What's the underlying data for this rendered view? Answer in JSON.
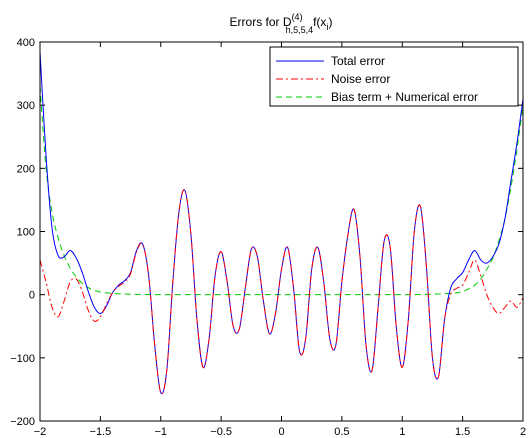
{
  "chart_data": {
    "type": "line",
    "title": {
      "prefix": "Errors for D",
      "superscript": "(4)",
      "subscript": "h,5,5,4",
      "suffix": "f(x",
      "suffix_sub": "i",
      "suffix_end": ")"
    },
    "xlabel": "",
    "ylabel": "",
    "xlim": [
      -2,
      2
    ],
    "ylim": [
      -200,
      400
    ],
    "x_ticks": [
      -2,
      -1.5,
      -1,
      -0.5,
      0,
      0.5,
      1,
      1.5,
      2
    ],
    "x_tick_labels": [
      "−2",
      "−1.5",
      "−1",
      "−0.5",
      "0",
      "0.5",
      "1",
      "1.5",
      "2"
    ],
    "y_ticks": [
      -200,
      -100,
      0,
      100,
      200,
      300,
      400
    ],
    "y_tick_labels": [
      "−200",
      "−100",
      "0",
      "100",
      "200",
      "300",
      "400"
    ],
    "grid": false,
    "legend_position": "top-right",
    "series": [
      {
        "name": "Total error",
        "color": "#0000ff",
        "dash": "solid",
        "x": [
          -2,
          -1.95,
          -1.9,
          -1.85,
          -1.8,
          -1.75,
          -1.7,
          -1.65,
          -1.6,
          -1.55,
          -1.5,
          -1.45,
          -1.4,
          -1.35,
          -1.3,
          -1.25,
          -1.2,
          -1.15,
          -1.1,
          -1.05,
          -1.0,
          -0.95,
          -0.9,
          -0.85,
          -0.8,
          -0.75,
          -0.7,
          -0.65,
          -0.6,
          -0.55,
          -0.5,
          -0.45,
          -0.4,
          -0.35,
          -0.3,
          -0.25,
          -0.2,
          -0.15,
          -0.1,
          -0.05,
          0,
          0.05,
          0.1,
          0.15,
          0.2,
          0.25,
          0.3,
          0.35,
          0.4,
          0.45,
          0.5,
          0.55,
          0.6,
          0.65,
          0.7,
          0.75,
          0.8,
          0.85,
          0.9,
          0.95,
          1.0,
          1.05,
          1.1,
          1.15,
          1.2,
          1.25,
          1.3,
          1.35,
          1.4,
          1.45,
          1.5,
          1.55,
          1.6,
          1.65,
          1.7,
          1.75,
          1.8,
          1.85,
          1.9,
          1.95,
          2
        ],
        "y": [
          385,
          220,
          105,
          62,
          60,
          70,
          58,
          35,
          5,
          -20,
          -30,
          -18,
          3,
          15,
          22,
          35,
          70,
          80,
          30,
          -80,
          -155,
          -120,
          20,
          130,
          165,
          95,
          -40,
          -115,
          -70,
          30,
          68,
          20,
          -50,
          -55,
          10,
          72,
          60,
          -10,
          -62,
          -30,
          40,
          75,
          10,
          -90,
          -70,
          40,
          75,
          20,
          -70,
          -80,
          20,
          95,
          135,
          60,
          -80,
          -120,
          -20,
          85,
          75,
          -50,
          -115,
          -40,
          100,
          140,
          45,
          -100,
          -130,
          -40,
          10,
          25,
          35,
          55,
          70,
          55,
          50,
          60,
          80,
          120,
          180,
          240,
          310
        ]
      },
      {
        "name": "Noise error",
        "color": "#ff0000",
        "dash": "dashdot",
        "x": [
          -2,
          -1.95,
          -1.9,
          -1.85,
          -1.8,
          -1.75,
          -1.7,
          -1.65,
          -1.6,
          -1.55,
          -1.5,
          -1.45,
          -1.4,
          -1.35,
          -1.3,
          -1.25,
          -1.2,
          -1.15,
          -1.1,
          -1.05,
          -1.0,
          -0.95,
          -0.9,
          -0.85,
          -0.8,
          -0.75,
          -0.7,
          -0.65,
          -0.6,
          -0.55,
          -0.5,
          -0.45,
          -0.4,
          -0.35,
          -0.3,
          -0.25,
          -0.2,
          -0.15,
          -0.1,
          -0.05,
          0,
          0.05,
          0.1,
          0.15,
          0.2,
          0.25,
          0.3,
          0.35,
          0.4,
          0.45,
          0.5,
          0.55,
          0.6,
          0.65,
          0.7,
          0.75,
          0.8,
          0.85,
          0.9,
          0.95,
          1.0,
          1.05,
          1.1,
          1.15,
          1.2,
          1.25,
          1.3,
          1.35,
          1.4,
          1.45,
          1.5,
          1.55,
          1.6,
          1.65,
          1.7,
          1.75,
          1.8,
          1.85,
          1.9,
          1.95,
          2
        ],
        "y": [
          55,
          20,
          -20,
          -35,
          -10,
          20,
          25,
          5,
          -25,
          -42,
          -35,
          -15,
          3,
          13,
          20,
          33,
          68,
          80,
          30,
          -80,
          -155,
          -120,
          20,
          130,
          165,
          95,
          -40,
          -115,
          -70,
          30,
          68,
          20,
          -50,
          -55,
          10,
          72,
          60,
          -10,
          -62,
          -30,
          40,
          75,
          10,
          -90,
          -70,
          40,
          75,
          20,
          -70,
          -80,
          20,
          95,
          135,
          60,
          -80,
          -120,
          -20,
          85,
          75,
          -50,
          -115,
          -40,
          100,
          140,
          45,
          -100,
          -130,
          -40,
          0,
          10,
          15,
          35,
          55,
          30,
          0,
          -20,
          -30,
          -20,
          -10,
          -20,
          -5
        ]
      },
      {
        "name": "Bias term + Numerical error",
        "color": "#00cc00",
        "dash": "dashed",
        "x": [
          -2,
          -1.95,
          -1.9,
          -1.85,
          -1.8,
          -1.75,
          -1.7,
          -1.65,
          -1.6,
          -1.55,
          -1.5,
          -1.45,
          -1.4,
          -1.35,
          -1.3,
          -1.2,
          -1.1,
          -1.0,
          -0.8,
          -0.6,
          -0.4,
          -0.2,
          0,
          0.2,
          0.4,
          0.6,
          0.8,
          1.0,
          1.1,
          1.2,
          1.3,
          1.35,
          1.4,
          1.45,
          1.5,
          1.55,
          1.6,
          1.65,
          1.7,
          1.75,
          1.8,
          1.85,
          1.9,
          1.95,
          2
        ],
        "y": [
          330,
          200,
          130,
          90,
          62,
          42,
          28,
          18,
          11,
          7,
          4,
          3,
          2,
          1.5,
          1,
          0.5,
          0.2,
          0,
          0,
          0,
          0,
          0,
          0,
          0,
          0,
          0,
          0,
          0,
          0.2,
          0.5,
          1,
          1.5,
          2,
          3,
          5,
          9,
          15,
          25,
          40,
          58,
          85,
          120,
          170,
          230,
          300
        ]
      }
    ]
  }
}
